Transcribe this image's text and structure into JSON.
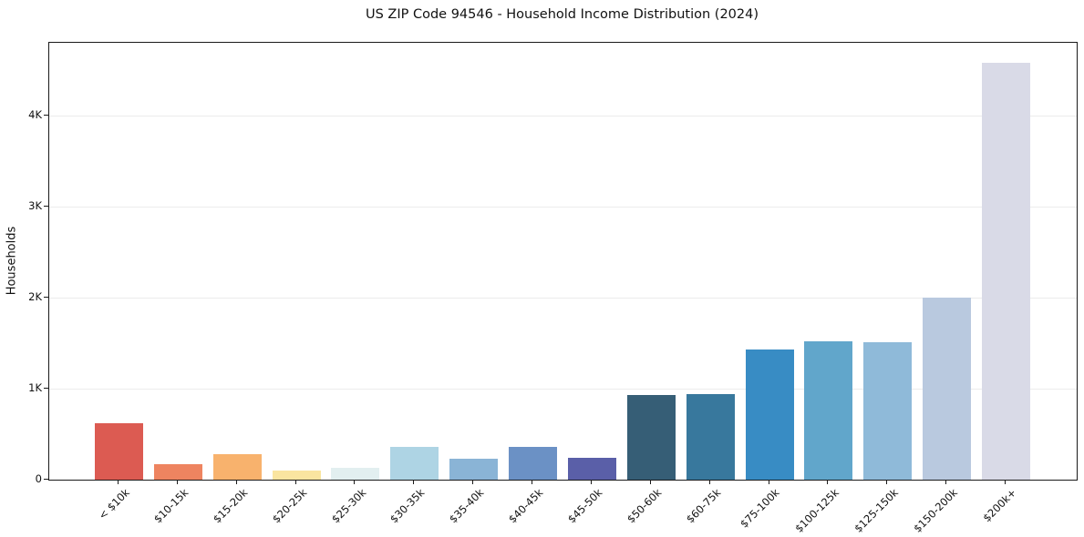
{
  "figure": {
    "background_color": "#ffffff",
    "frame_color": "#1a1a1a",
    "gridline_color": "#ececec"
  },
  "chart_data": {
    "type": "bar",
    "title": "US ZIP Code 94546 - Household Income Distribution (2024)",
    "xlabel": "",
    "ylabel": "Households",
    "categories": [
      "< $10k",
      "$10-15k",
      "$15-20k",
      "$20-25k",
      "$25-30k",
      "$30-35k",
      "$35-40k",
      "$40-45k",
      "$45-50k",
      "$50-60k",
      "$60-75k",
      "$75-100k",
      "$100-125k",
      "$125-150k",
      "$150-200k",
      "$200k+"
    ],
    "values": [
      620,
      175,
      285,
      100,
      135,
      360,
      235,
      360,
      240,
      930,
      940,
      1430,
      1520,
      1510,
      2000,
      4580
    ],
    "bar_colors": [
      "#dc5b52",
      "#ee8460",
      "#f8b26d",
      "#fae5a0",
      "#e2eff0",
      "#aed4e4",
      "#8ab4d6",
      "#6b91c5",
      "#5a5fa8",
      "#365e76",
      "#38789d",
      "#388cc4",
      "#61a6cb",
      "#8fbad9",
      "#b9c9df",
      "#d9dae7"
    ],
    "ylim": [
      0,
      4800
    ],
    "yticks": [
      {
        "value": 0,
        "label": "0"
      },
      {
        "value": 1000,
        "label": "1K"
      },
      {
        "value": 2000,
        "label": "2K"
      },
      {
        "value": 3000,
        "label": "3K"
      },
      {
        "value": 4000,
        "label": "4K"
      }
    ],
    "grid": "horizontal",
    "legend": "none",
    "x_tick_label_rotation_deg": 45
  }
}
